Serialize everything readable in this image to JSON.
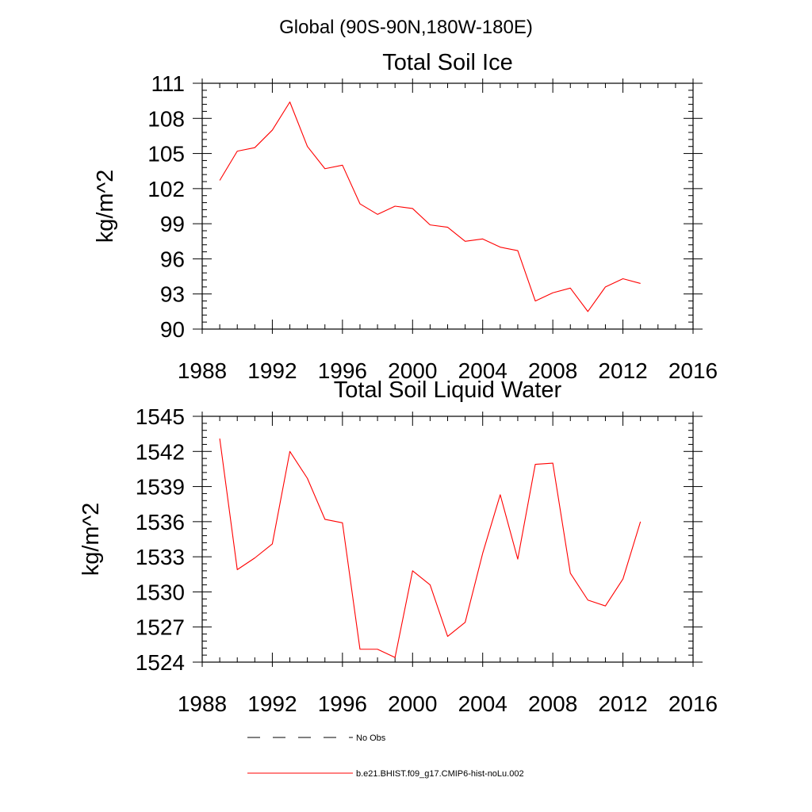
{
  "figure": {
    "main_title": "Global (90S-90N,180W-180E)"
  },
  "chart_data": [
    {
      "type": "line",
      "title": "Total Soil Ice",
      "xlabel": "",
      "ylabel": "kg/m^2",
      "xlim": [
        1988,
        2016
      ],
      "ylim": [
        90,
        111
      ],
      "x_ticks": [
        1988,
        1992,
        1996,
        2000,
        2004,
        2008,
        2012,
        2016
      ],
      "y_ticks": [
        90,
        93,
        96,
        99,
        102,
        105,
        108,
        111
      ],
      "grid": false,
      "series": [
        {
          "name": "b.e21.BHIST.f09_g17.CMIP6-hist-noLu.002",
          "color": "#ff0000",
          "x": [
            1989,
            1990,
            1991,
            1992,
            1993,
            1994,
            1995,
            1996,
            1997,
            1998,
            1999,
            2000,
            2001,
            2002,
            2003,
            2004,
            2005,
            2006,
            2007,
            2008,
            2009,
            2010,
            2011,
            2012,
            2013
          ],
          "y": [
            102.7,
            105.2,
            105.5,
            107.0,
            109.4,
            105.6,
            103.7,
            104.0,
            100.7,
            99.8,
            100.5,
            100.3,
            98.9,
            98.7,
            97.5,
            97.7,
            97.0,
            96.7,
            92.4,
            93.1,
            93.5,
            91.5,
            93.6,
            94.3,
            93.9
          ]
        }
      ]
    },
    {
      "type": "line",
      "title": "Total Soil Liquid Water",
      "xlabel": "",
      "ylabel": "kg/m^2",
      "xlim": [
        1988,
        2016
      ],
      "ylim": [
        1524,
        1545
      ],
      "x_ticks": [
        1988,
        1992,
        1996,
        2000,
        2004,
        2008,
        2012,
        2016
      ],
      "y_ticks": [
        1524,
        1527,
        1530,
        1533,
        1536,
        1539,
        1542,
        1545
      ],
      "grid": false,
      "series": [
        {
          "name": "b.e21.BHIST.f09_g17.CMIP6-hist-noLu.002",
          "color": "#ff0000",
          "x": [
            1989,
            1990,
            1991,
            1992,
            1993,
            1994,
            1995,
            1996,
            1997,
            1998,
            1999,
            2000,
            2001,
            2002,
            2003,
            2004,
            2005,
            2006,
            2007,
            2008,
            2009,
            2010,
            2011,
            2012,
            2013
          ],
          "y": [
            1543.1,
            1531.9,
            1532.9,
            1534.1,
            1542.0,
            1539.7,
            1536.2,
            1535.9,
            1525.1,
            1525.1,
            1524.4,
            1531.8,
            1530.6,
            1526.2,
            1527.4,
            1533.3,
            1538.3,
            1532.8,
            1540.9,
            1541.0,
            1531.6,
            1529.3,
            1528.8,
            1531.1,
            1536.0
          ]
        }
      ]
    }
  ],
  "legend": {
    "placement": "bottom",
    "entries": [
      {
        "label": "No Obs",
        "style": "dashed",
        "color": "#000000"
      },
      {
        "label": "b.e21.BHIST.f09_g17.CMIP6-hist-noLu.002",
        "style": "solid",
        "color": "#ff0000"
      }
    ]
  }
}
